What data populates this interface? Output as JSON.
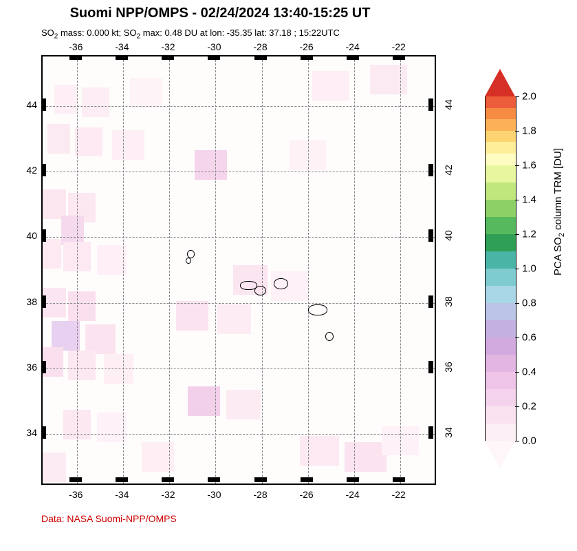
{
  "title": "Suomi NPP/OMPS - 02/24/2024 13:40-15:25 UT",
  "subtitle_html": "SO<sub>2</sub> mass: 0.000 kt; SO<sub>2</sub> max: 0.48 DU at lon: -35.35 lat: 37.18 ; 15:22UTC",
  "credit": "Data: NASA Suomi-NPP/OMPS",
  "map": {
    "type": "heatmap",
    "xlim": [
      -37.5,
      -20.5
    ],
    "ylim": [
      32.5,
      45.5
    ],
    "x_ticks": [
      -36,
      -34,
      -32,
      -30,
      -28,
      -26,
      -24,
      -22
    ],
    "y_ticks": [
      34,
      36,
      38,
      40,
      42,
      44
    ],
    "background_color": "#fffcfc",
    "grid_color": "#888888",
    "frame_color": "#000000",
    "label_fontsize": 14,
    "cells": [
      {
        "lon": -36.5,
        "lat": 44.2,
        "w": 1.0,
        "h": 0.9,
        "color": "#fdeff5"
      },
      {
        "lon": -35.2,
        "lat": 44.1,
        "w": 1.2,
        "h": 0.9,
        "color": "#fdeef5"
      },
      {
        "lon": -33.0,
        "lat": 44.4,
        "w": 1.4,
        "h": 0.9,
        "color": "#fef3f7"
      },
      {
        "lon": -25.0,
        "lat": 44.6,
        "w": 1.6,
        "h": 0.9,
        "color": "#fdeff5"
      },
      {
        "lon": -22.5,
        "lat": 44.8,
        "w": 1.6,
        "h": 0.9,
        "color": "#fceaf2"
      },
      {
        "lon": -36.8,
        "lat": 43.0,
        "w": 1.0,
        "h": 0.9,
        "color": "#fceaf2"
      },
      {
        "lon": -35.5,
        "lat": 42.9,
        "w": 1.2,
        "h": 0.9,
        "color": "#fdeaf2"
      },
      {
        "lon": -33.8,
        "lat": 42.8,
        "w": 1.4,
        "h": 0.9,
        "color": "#feeff6"
      },
      {
        "lon": -30.2,
        "lat": 42.2,
        "w": 1.4,
        "h": 0.9,
        "color": "#f5d5ec"
      },
      {
        "lon": -26.0,
        "lat": 42.5,
        "w": 1.6,
        "h": 0.9,
        "color": "#fef2f7"
      },
      {
        "lon": -37.0,
        "lat": 41.0,
        "w": 1.0,
        "h": 0.9,
        "color": "#fce7f1"
      },
      {
        "lon": -35.8,
        "lat": 40.9,
        "w": 1.2,
        "h": 0.9,
        "color": "#fce8f1"
      },
      {
        "lon": -36.2,
        "lat": 40.2,
        "w": 1.0,
        "h": 0.9,
        "color": "#f5daee"
      },
      {
        "lon": -37.2,
        "lat": 39.5,
        "w": 1.0,
        "h": 0.9,
        "color": "#fce9f2"
      },
      {
        "lon": -36.0,
        "lat": 39.4,
        "w": 1.2,
        "h": 0.9,
        "color": "#fce9f2"
      },
      {
        "lon": -34.5,
        "lat": 39.3,
        "w": 1.3,
        "h": 0.9,
        "color": "#fef0f6"
      },
      {
        "lon": -28.5,
        "lat": 38.7,
        "w": 1.5,
        "h": 0.9,
        "color": "#fbe5f0"
      },
      {
        "lon": -26.8,
        "lat": 38.5,
        "w": 1.6,
        "h": 0.9,
        "color": "#fef1f7"
      },
      {
        "lon": -37.0,
        "lat": 38.0,
        "w": 1.0,
        "h": 0.9,
        "color": "#fbe5f0"
      },
      {
        "lon": -35.8,
        "lat": 37.9,
        "w": 1.2,
        "h": 0.9,
        "color": "#fae0ee"
      },
      {
        "lon": -31.0,
        "lat": 37.6,
        "w": 1.4,
        "h": 0.9,
        "color": "#fbe3ef"
      },
      {
        "lon": -29.2,
        "lat": 37.5,
        "w": 1.5,
        "h": 0.9,
        "color": "#fdecf4"
      },
      {
        "lon": -36.5,
        "lat": 37.0,
        "w": 1.2,
        "h": 0.9,
        "color": "#e8d0f0"
      },
      {
        "lon": -35.0,
        "lat": 36.9,
        "w": 1.3,
        "h": 0.9,
        "color": "#fbe4f0"
      },
      {
        "lon": -37.1,
        "lat": 36.2,
        "w": 1.0,
        "h": 0.9,
        "color": "#fae0ee"
      },
      {
        "lon": -35.8,
        "lat": 36.1,
        "w": 1.2,
        "h": 0.9,
        "color": "#fce8f1"
      },
      {
        "lon": -34.2,
        "lat": 36.0,
        "w": 1.3,
        "h": 0.9,
        "color": "#feeff5"
      },
      {
        "lon": -30.5,
        "lat": 35.0,
        "w": 1.4,
        "h": 0.9,
        "color": "#f3d0ea"
      },
      {
        "lon": -28.8,
        "lat": 34.9,
        "w": 1.5,
        "h": 0.9,
        "color": "#fdebf3"
      },
      {
        "lon": -36.0,
        "lat": 34.3,
        "w": 1.2,
        "h": 0.9,
        "color": "#fce8f1"
      },
      {
        "lon": -34.5,
        "lat": 34.2,
        "w": 1.3,
        "h": 0.9,
        "color": "#fef1f7"
      },
      {
        "lon": -25.5,
        "lat": 33.5,
        "w": 1.7,
        "h": 0.9,
        "color": "#fce9f2"
      },
      {
        "lon": -23.5,
        "lat": 33.3,
        "w": 1.8,
        "h": 0.9,
        "color": "#fbe3ef"
      },
      {
        "lon": -22.0,
        "lat": 33.8,
        "w": 1.6,
        "h": 0.9,
        "color": "#fef1f7"
      },
      {
        "lon": -37.0,
        "lat": 33.0,
        "w": 1.0,
        "h": 0.9,
        "color": "#fdebf3"
      },
      {
        "lon": -32.5,
        "lat": 33.3,
        "w": 1.4,
        "h": 0.9,
        "color": "#feeff5"
      }
    ],
    "islands": [
      {
        "lon": -31.1,
        "lat": 39.5,
        "w": 0.25,
        "h": 0.2,
        "radius": "50%"
      },
      {
        "lon": -31.2,
        "lat": 39.3,
        "w": 0.18,
        "h": 0.15,
        "radius": "50%"
      },
      {
        "lon": -28.6,
        "lat": 38.55,
        "w": 0.7,
        "h": 0.22,
        "radius": "45%"
      },
      {
        "lon": -28.1,
        "lat": 38.4,
        "w": 0.45,
        "h": 0.25,
        "radius": "50%"
      },
      {
        "lon": -27.2,
        "lat": 38.6,
        "w": 0.55,
        "h": 0.3,
        "radius": "48%"
      },
      {
        "lon": -25.6,
        "lat": 37.8,
        "w": 0.75,
        "h": 0.3,
        "radius": "45%"
      },
      {
        "lon": -25.1,
        "lat": 37.0,
        "w": 0.3,
        "h": 0.22,
        "radius": "50%"
      }
    ]
  },
  "colorbar": {
    "title_html": "PCA SO<sub>2</sub> column TRM [DU]",
    "min": 0.0,
    "max": 2.0,
    "ticks": [
      0.0,
      0.2,
      0.4,
      0.6,
      0.8,
      1.0,
      1.2,
      1.4,
      1.6,
      1.8,
      2.0
    ],
    "arrow_top_color": "#d62f26",
    "arrow_bot_color": "#fef6f9",
    "segments": [
      {
        "color": "#ee5d3b",
        "frac": 0.033
      },
      {
        "color": "#f68c44",
        "frac": 0.033
      },
      {
        "color": "#fcb156",
        "frac": 0.033
      },
      {
        "color": "#fed473",
        "frac": 0.033
      },
      {
        "color": "#feee9a",
        "frac": 0.033
      },
      {
        "color": "#fefcc3",
        "frac": 0.034
      },
      {
        "color": "#e8f6a0",
        "frac": 0.05
      },
      {
        "color": "#c0e77e",
        "frac": 0.05
      },
      {
        "color": "#8dd166",
        "frac": 0.05
      },
      {
        "color": "#57b95e",
        "frac": 0.05
      },
      {
        "color": "#2f9f56",
        "frac": 0.05
      },
      {
        "color": "#4ab5a6",
        "frac": 0.05
      },
      {
        "color": "#7fccd0",
        "frac": 0.05
      },
      {
        "color": "#a9d7e8",
        "frac": 0.05
      },
      {
        "color": "#bcc5e8",
        "frac": 0.05
      },
      {
        "color": "#c5b0e2",
        "frac": 0.05
      },
      {
        "color": "#d3aae0",
        "frac": 0.05
      },
      {
        "color": "#e3b5e3",
        "frac": 0.05
      },
      {
        "color": "#eec4e8",
        "frac": 0.05
      },
      {
        "color": "#f5d3ec",
        "frac": 0.05
      },
      {
        "color": "#fae2f1",
        "frac": 0.05
      },
      {
        "color": "#fdeff6",
        "frac": 0.05
      }
    ],
    "label_fontsize": 15,
    "title_fontsize": 15
  }
}
